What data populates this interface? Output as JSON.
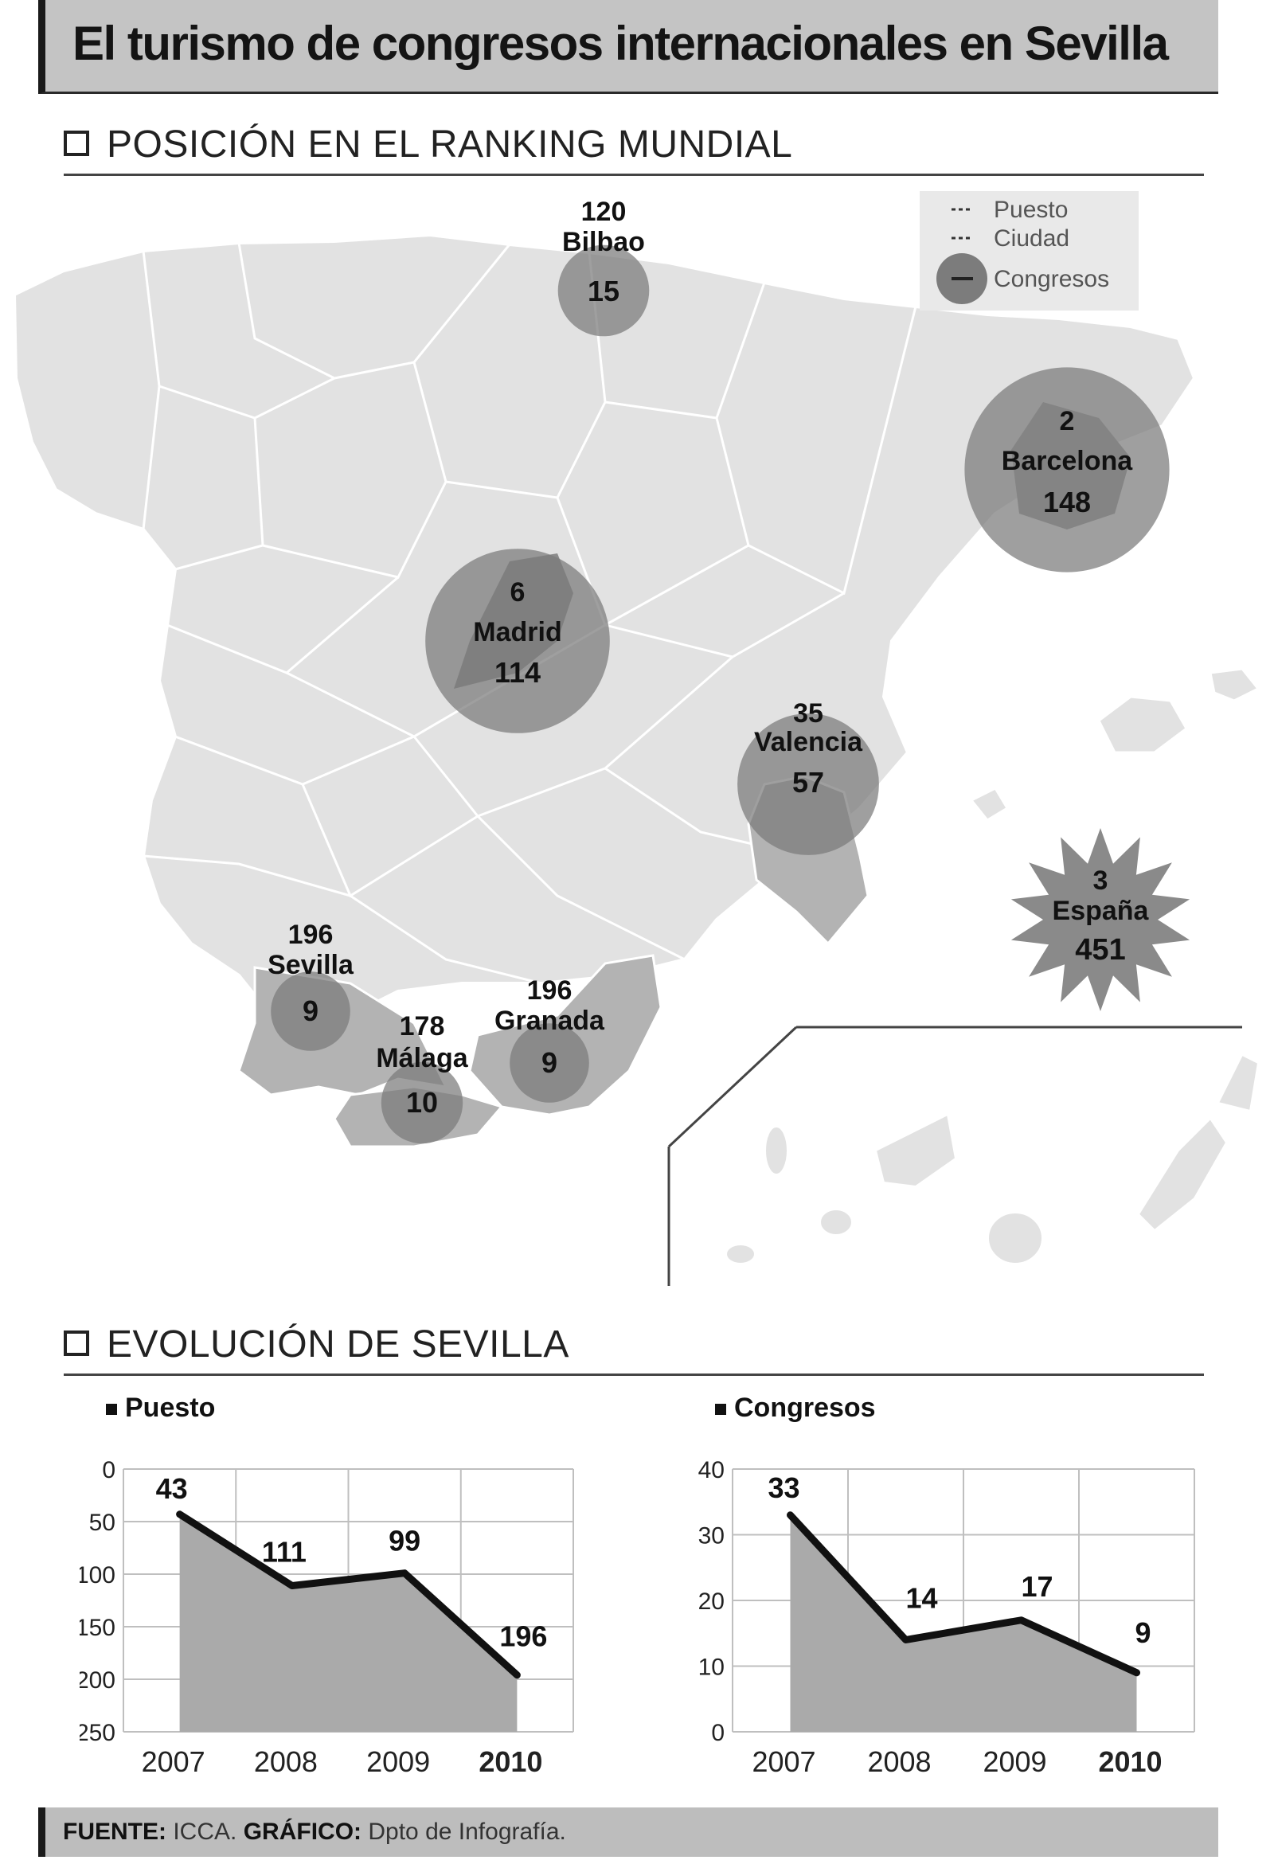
{
  "header": {
    "title": "El turismo de congresos internacionales en Sevilla"
  },
  "sections": {
    "ranking": "POSICIÓN EN EL RANKING MUNDIAL",
    "evolution": "EVOLUCIÓN DE SEVILLA"
  },
  "map": {
    "legend": {
      "rank_label": "Puesto",
      "city_label": "Ciudad",
      "congress_label": "Congresos"
    },
    "cities": [
      {
        "id": "bilbao",
        "rank": "120",
        "name": "Bilbao",
        "congresses": 15
      },
      {
        "id": "barcelona",
        "rank": "2",
        "name": "Barcelona",
        "congresses": 148
      },
      {
        "id": "madrid",
        "rank": "6",
        "name": "Madrid",
        "congresses": 114
      },
      {
        "id": "valencia",
        "rank": "35",
        "name": "Valencia",
        "congresses": 57
      },
      {
        "id": "sevilla",
        "rank": "196",
        "name": "Sevilla",
        "congresses": 9
      },
      {
        "id": "malaga",
        "rank": "178",
        "name": "Málaga",
        "congresses": 10
      },
      {
        "id": "granada",
        "rank": "196",
        "name": "Granada",
        "congresses": 9
      }
    ],
    "country": {
      "rank": "3",
      "name": "España",
      "congresses": "451"
    }
  },
  "chart_data": [
    {
      "type": "area",
      "title": "Puesto",
      "categories": [
        "2007",
        "2008",
        "2009",
        "2010"
      ],
      "values": [
        43,
        111,
        99,
        196
      ],
      "ylim": [
        0,
        250
      ],
      "yticks": [
        0,
        50,
        100,
        150,
        200,
        250
      ],
      "y_inverted": true,
      "grid": true,
      "colors": {
        "line": "#111111",
        "fill": "#aaaaaa",
        "grid": "#bfbfbf"
      }
    },
    {
      "type": "area",
      "title": "Congresos",
      "categories": [
        "2007",
        "2008",
        "2009",
        "2010"
      ],
      "values": [
        33,
        14,
        17,
        9
      ],
      "ylim": [
        0,
        40
      ],
      "yticks": [
        0,
        10,
        20,
        30,
        40
      ],
      "y_inverted": false,
      "grid": true,
      "colors": {
        "line": "#111111",
        "fill": "#aaaaaa",
        "grid": "#bfbfbf"
      }
    }
  ],
  "footer": {
    "source_label": "FUENTE:",
    "source_value": "ICCA.",
    "graphic_label": "GRÁFICO:",
    "graphic_value": "Dpto de Infografía."
  }
}
